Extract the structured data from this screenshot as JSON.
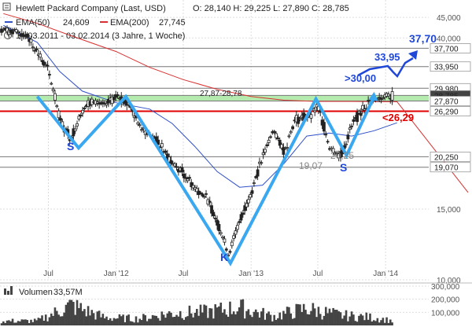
{
  "header": {
    "title": "Hewlett Packard Company (Last, USD)",
    "ohlc": "O: 28,140  H: 29,225  L: 27,890  C: 28,785",
    "ema50_label": "EMA(50)",
    "ema50_value": "24,609",
    "ema200_label": "EMA(200)",
    "ema200_value": "27,745",
    "range": "14.03.2011 - 03.02.2014 (3 Jahre, 1 Woche)"
  },
  "volume": {
    "label": "Volumen",
    "value": "33,57M"
  },
  "colors": {
    "price": "#222222",
    "ema50": "#3050c8",
    "ema200": "#d83030",
    "pattern": "#3aa8f0",
    "target": "#1f48d8",
    "support_band": "#a8e6a0",
    "support_line": "#e00000",
    "grid": "#dddddd"
  },
  "annotations": {
    "band_label": "27,87-28,78",
    "label_19": "19,07",
    "label_2025": "20,25",
    "label_30": ">30,00",
    "label_3395": "33,95",
    "label_3770": "37,70",
    "label_2629": "<26,29",
    "s_left": "S",
    "s_right": "S",
    "k_label": "K"
  },
  "chart_data": {
    "type": "line",
    "title": "Hewlett Packard Company (Last, USD)",
    "yscale": "log",
    "ylim": [
      10,
      45
    ],
    "y_ticks": [
      10000,
      15000,
      40000,
      45000
    ],
    "y_tick_labels": [
      "10,000",
      "15,000",
      "40,000",
      "45,000"
    ],
    "x_ticks": [
      {
        "label": "Jul",
        "date": "2011-07"
      },
      {
        "label": "Jan '12",
        "date": "2012-01"
      },
      {
        "label": "Jul",
        "date": "2012-07"
      },
      {
        "label": "Jan '13",
        "date": "2013-01"
      },
      {
        "label": "Jul",
        "date": "2013-07"
      },
      {
        "label": "Jan '14",
        "date": "2014-01"
      }
    ],
    "levels": [
      {
        "value": 37.7,
        "label": "37,700"
      },
      {
        "value": 33.95,
        "label": "33,950"
      },
      {
        "value": 29.98,
        "label": "29,980"
      },
      {
        "value": 28.785,
        "label": "28,785"
      },
      {
        "value": 27.87,
        "label": "27,870"
      },
      {
        "value": 26.29,
        "label": "26,290"
      },
      {
        "value": 20.25,
        "label": "20,250"
      },
      {
        "value": 19.07,
        "label": "19,070"
      }
    ],
    "support_band": [
      27.87,
      28.78
    ],
    "price": {
      "dates": [
        "2011-03",
        "2011-05",
        "2011-06",
        "2011-07",
        "2011-08",
        "2011-09",
        "2011-10",
        "2011-11",
        "2011-12",
        "2012-01",
        "2012-02",
        "2012-03",
        "2012-04",
        "2012-05",
        "2012-06",
        "2012-07",
        "2012-08",
        "2012-09",
        "2012-10",
        "2012-11",
        "2012-12",
        "2013-01",
        "2013-02",
        "2013-03",
        "2013-04",
        "2013-05",
        "2013-06",
        "2013-07",
        "2013-08",
        "2013-09",
        "2013-10",
        "2013-11",
        "2013-12",
        "2014-01",
        "2014-02"
      ],
      "values": [
        42.0,
        41.0,
        37.0,
        33.0,
        25.0,
        22.5,
        26.5,
        28.0,
        27.0,
        28.5,
        28.0,
        24.5,
        23.0,
        21.5,
        19.5,
        18.5,
        17.0,
        16.0,
        14.0,
        11.5,
        14.0,
        16.5,
        20.0,
        23.5,
        21.0,
        25.0,
        25.5,
        27.0,
        21.5,
        20.3,
        24.0,
        27.0,
        28.0,
        28.8,
        28.8
      ]
    },
    "ema50": {
      "dates": [
        "2011-03",
        "2011-06",
        "2011-08",
        "2011-10",
        "2012-01",
        "2012-04",
        "2012-06",
        "2012-08",
        "2012-10",
        "2012-12",
        "2013-02",
        "2013-04",
        "2013-06",
        "2013-08",
        "2013-10",
        "2013-12",
        "2014-02"
      ],
      "values": [
        43.0,
        39.0,
        33.0,
        29.5,
        27.6,
        26.6,
        24.5,
        21.5,
        18.6,
        17.0,
        17.2,
        19.5,
        22.8,
        23.2,
        22.8,
        23.5,
        24.6
      ]
    },
    "ema200": {
      "dates": [
        "2011-03",
        "2011-06",
        "2011-09",
        "2012-01",
        "2012-04",
        "2012-07",
        "2012-10",
        "2013-01",
        "2013-04",
        "2013-07",
        "2013-10",
        "2014-01",
        "2014-02"
      ],
      "values": [
        46.0,
        43.5,
        40.5,
        37.0,
        33.8,
        31.5,
        29.8,
        28.6,
        28.0,
        27.8,
        27.8,
        27.75,
        27.75
      ]
    },
    "volume": {
      "dates": [
        "2011-06",
        "2011-09",
        "2011-12",
        "2012-03",
        "2012-06",
        "2012-09",
        "2012-12",
        "2013-03",
        "2013-06",
        "2013-09",
        "2013-12",
        "2014-02"
      ],
      "values": [
        40,
        180,
        70,
        60,
        110,
        120,
        160,
        80,
        150,
        90,
        70,
        33.57
      ],
      "y_tick_labels": [
        "100,000",
        "200,000",
        "300,000"
      ]
    }
  }
}
